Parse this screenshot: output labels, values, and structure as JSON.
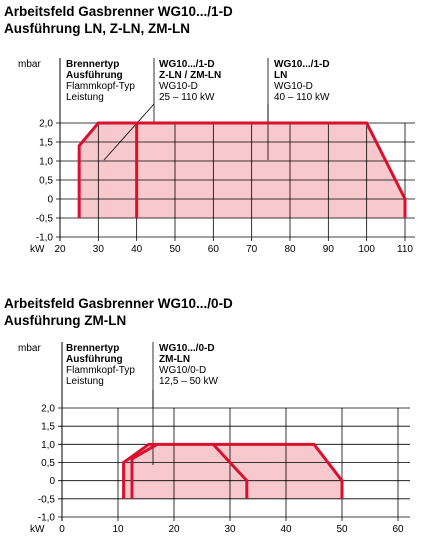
{
  "chart_data": [
    {
      "type": "area",
      "title": [
        "Arbeitsfeld Gasbrenner WG10.../1-D",
        "Ausführung LN, Z-LN, ZM-LN"
      ],
      "ylabel": "mbar",
      "xlabel": "kW",
      "xlim": [
        20,
        110
      ],
      "ylim": [
        -1.0,
        2.0
      ],
      "x_ticks": [
        20,
        30,
        40,
        50,
        60,
        70,
        80,
        90,
        100,
        110
      ],
      "y_ticks": [
        2.0,
        1.5,
        1.0,
        0.5,
        0.0,
        -0.5,
        -1.0
      ],
      "y_tick_labels": [
        "2,0",
        "1,5",
        "1,0",
        "0,5",
        "0",
        "-0,5",
        "-1,0"
      ],
      "grid": true,
      "table": {
        "labels": [
          "Brennertyp",
          "Ausführung",
          "Flammkopf-Typ",
          "Leistung"
        ],
        "columns": [
          [
            "WG10.../1-D",
            "Z-LN / ZM-LN",
            "WG10-D",
            "25 – 110 kW"
          ],
          [
            "WG10.../1-D",
            "LN",
            "WG10-D",
            "40 – 110 kW"
          ]
        ]
      },
      "series": [
        {
          "points": [
            [
              25,
              -0.5
            ],
            [
              25,
              1.4
            ],
            [
              30,
              2.0
            ],
            [
              100,
              2.0
            ],
            [
              110,
              0.0
            ],
            [
              110,
              -0.5
            ]
          ]
        },
        {
          "points": [
            [
              40,
              -0.5
            ],
            [
              40,
              2.0
            ]
          ]
        }
      ]
    },
    {
      "type": "area",
      "title": [
        "Arbeitsfeld Gasbrenner WG10.../0-D",
        "Ausführung ZM-LN"
      ],
      "ylabel": "mbar",
      "xlabel": "kW",
      "xlim": [
        0,
        60
      ],
      "ylim": [
        -1.0,
        2.0
      ],
      "x_ticks": [
        0,
        10,
        20,
        30,
        40,
        50,
        60
      ],
      "y_ticks": [
        2.0,
        1.5,
        1.0,
        0.5,
        0.0,
        -0.5,
        -1.0
      ],
      "y_tick_labels": [
        "2,0",
        "1,5",
        "1,0",
        "0,5",
        "0",
        "-0,5",
        "-1,0"
      ],
      "grid": true,
      "table": {
        "labels": [
          "Brennertyp",
          "Ausführung",
          "Flammkopf-Typ",
          "Leistung"
        ],
        "columns": [
          [
            "WG10.../0-D",
            "ZM-LN",
            "WG10/0-D",
            "12,5 – 50 kW"
          ]
        ]
      },
      "series": [
        {
          "points": [
            [
              11,
              -0.5
            ],
            [
              11,
              0.5
            ],
            [
              15.5,
              1.0
            ],
            [
              45,
              1.0
            ],
            [
              50,
              0.0
            ],
            [
              50,
              -0.5
            ]
          ]
        },
        {
          "points": [
            [
              12.5,
              -0.5
            ],
            [
              12.5,
              0.6
            ],
            [
              17,
              1.0
            ]
          ]
        },
        {
          "points": [
            [
              27,
              1.0
            ],
            [
              33,
              0.0
            ],
            [
              33,
              -0.5
            ]
          ]
        }
      ]
    }
  ]
}
